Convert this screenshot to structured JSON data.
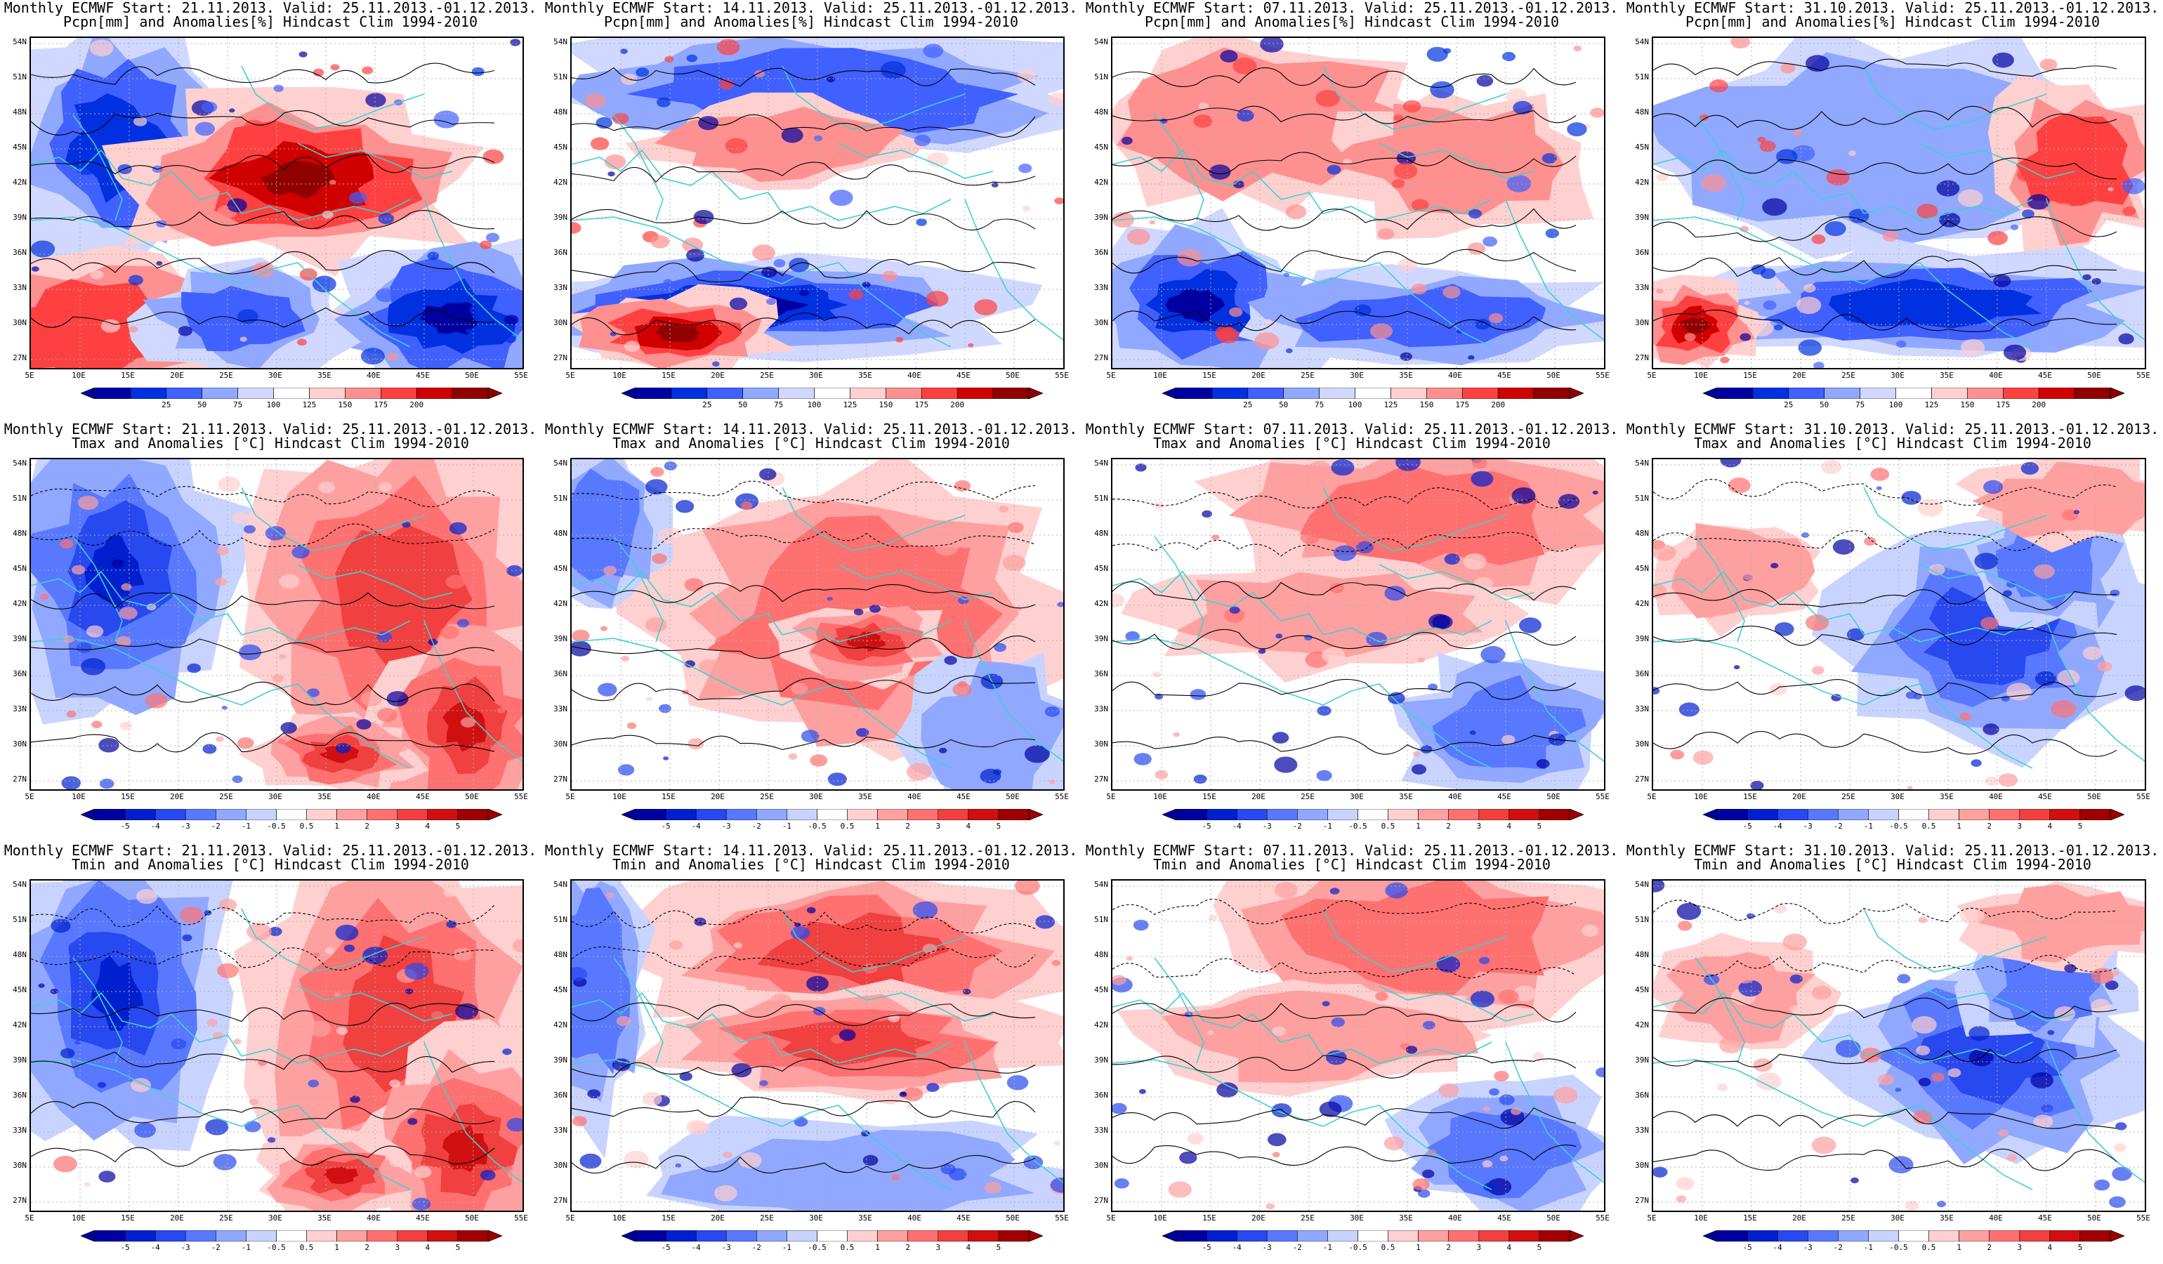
{
  "figure": {
    "rows": [
      {
        "variable_title": "Pcpn[mm] and Anomalies[%] Hindcast Clim 1994-2010",
        "kind": "precip",
        "colorbar_labels": [
          "25",
          "50",
          "75",
          "100",
          "125",
          "150",
          "175",
          "200"
        ],
        "colorbar_colors": [
          "#0000a0",
          "#0030e0",
          "#4060ff",
          "#90a8ff",
          "#d0d8ff",
          "#ffffff",
          "#ffd0d0",
          "#ff9090",
          "#ff4040",
          "#d00000",
          "#900000"
        ]
      },
      {
        "variable_title": "Tmax and Anomalies [°C] Hindcast Clim 1994-2010",
        "kind": "temp",
        "colorbar_labels": [
          "-5",
          "-4",
          "-3",
          "-2",
          "-1",
          "-0.5",
          "0.5",
          "1",
          "2",
          "3",
          "4",
          "5"
        ],
        "colorbar_colors": [
          "#0000a0",
          "#0020d0",
          "#2848f0",
          "#5878ff",
          "#90a8ff",
          "#c8d4ff",
          "#ffffff",
          "#ffd0d0",
          "#ffa0a0",
          "#ff7070",
          "#f04040",
          "#d01010",
          "#a00000"
        ]
      },
      {
        "variable_title": "Tmin and Anomalies [°C] Hindcast Clim 1994-2010",
        "kind": "temp",
        "colorbar_labels": [
          "-5",
          "-4",
          "-3",
          "-2",
          "-1",
          "-0.5",
          "0.5",
          "1",
          "2",
          "3",
          "4",
          "5"
        ],
        "colorbar_colors": [
          "#0000a0",
          "#0020d0",
          "#2848f0",
          "#5878ff",
          "#90a8ff",
          "#c8d4ff",
          "#ffffff",
          "#ffd0d0",
          "#ffa0a0",
          "#ff7070",
          "#f04040",
          "#d01010",
          "#a00000"
        ]
      }
    ],
    "columns": [
      {
        "start_title": "Monthly ECMWF Start: 21.11.2013. Valid: 25.11.2013.-01.12.2013."
      },
      {
        "start_title": "Monthly ECMWF Start: 14.11.2013. Valid: 25.11.2013.-01.12.2013."
      },
      {
        "start_title": "Monthly ECMWF Start: 07.11.2013. Valid: 25.11.2013.-01.12.2013."
      },
      {
        "start_title": "Monthly ECMWF Start: 31.10.2013. Valid: 25.11.2013.-01.12.2013."
      }
    ],
    "lat_labels": [
      "54N",
      "51N",
      "48N",
      "45N",
      "42N",
      "39N",
      "36N",
      "33N",
      "30N",
      "27N"
    ],
    "lon_labels": [
      "5E",
      "10E",
      "15E",
      "20E",
      "25E",
      "30E",
      "35E",
      "40E",
      "45E",
      "50E",
      "55E"
    ],
    "coastline_color": "#40d0d0",
    "anomaly_patterns": [
      [
        "wetwest-reddyeast",
        "blue-north-south",
        "pale-mixed",
        "pale-blue-south"
      ],
      [
        "blue-west-red-east",
        "red-central",
        "red-north-pale",
        "blue-east"
      ],
      [
        "blue-west-red-east",
        "red-north",
        "red-north-pale",
        "blue-east"
      ]
    ]
  }
}
